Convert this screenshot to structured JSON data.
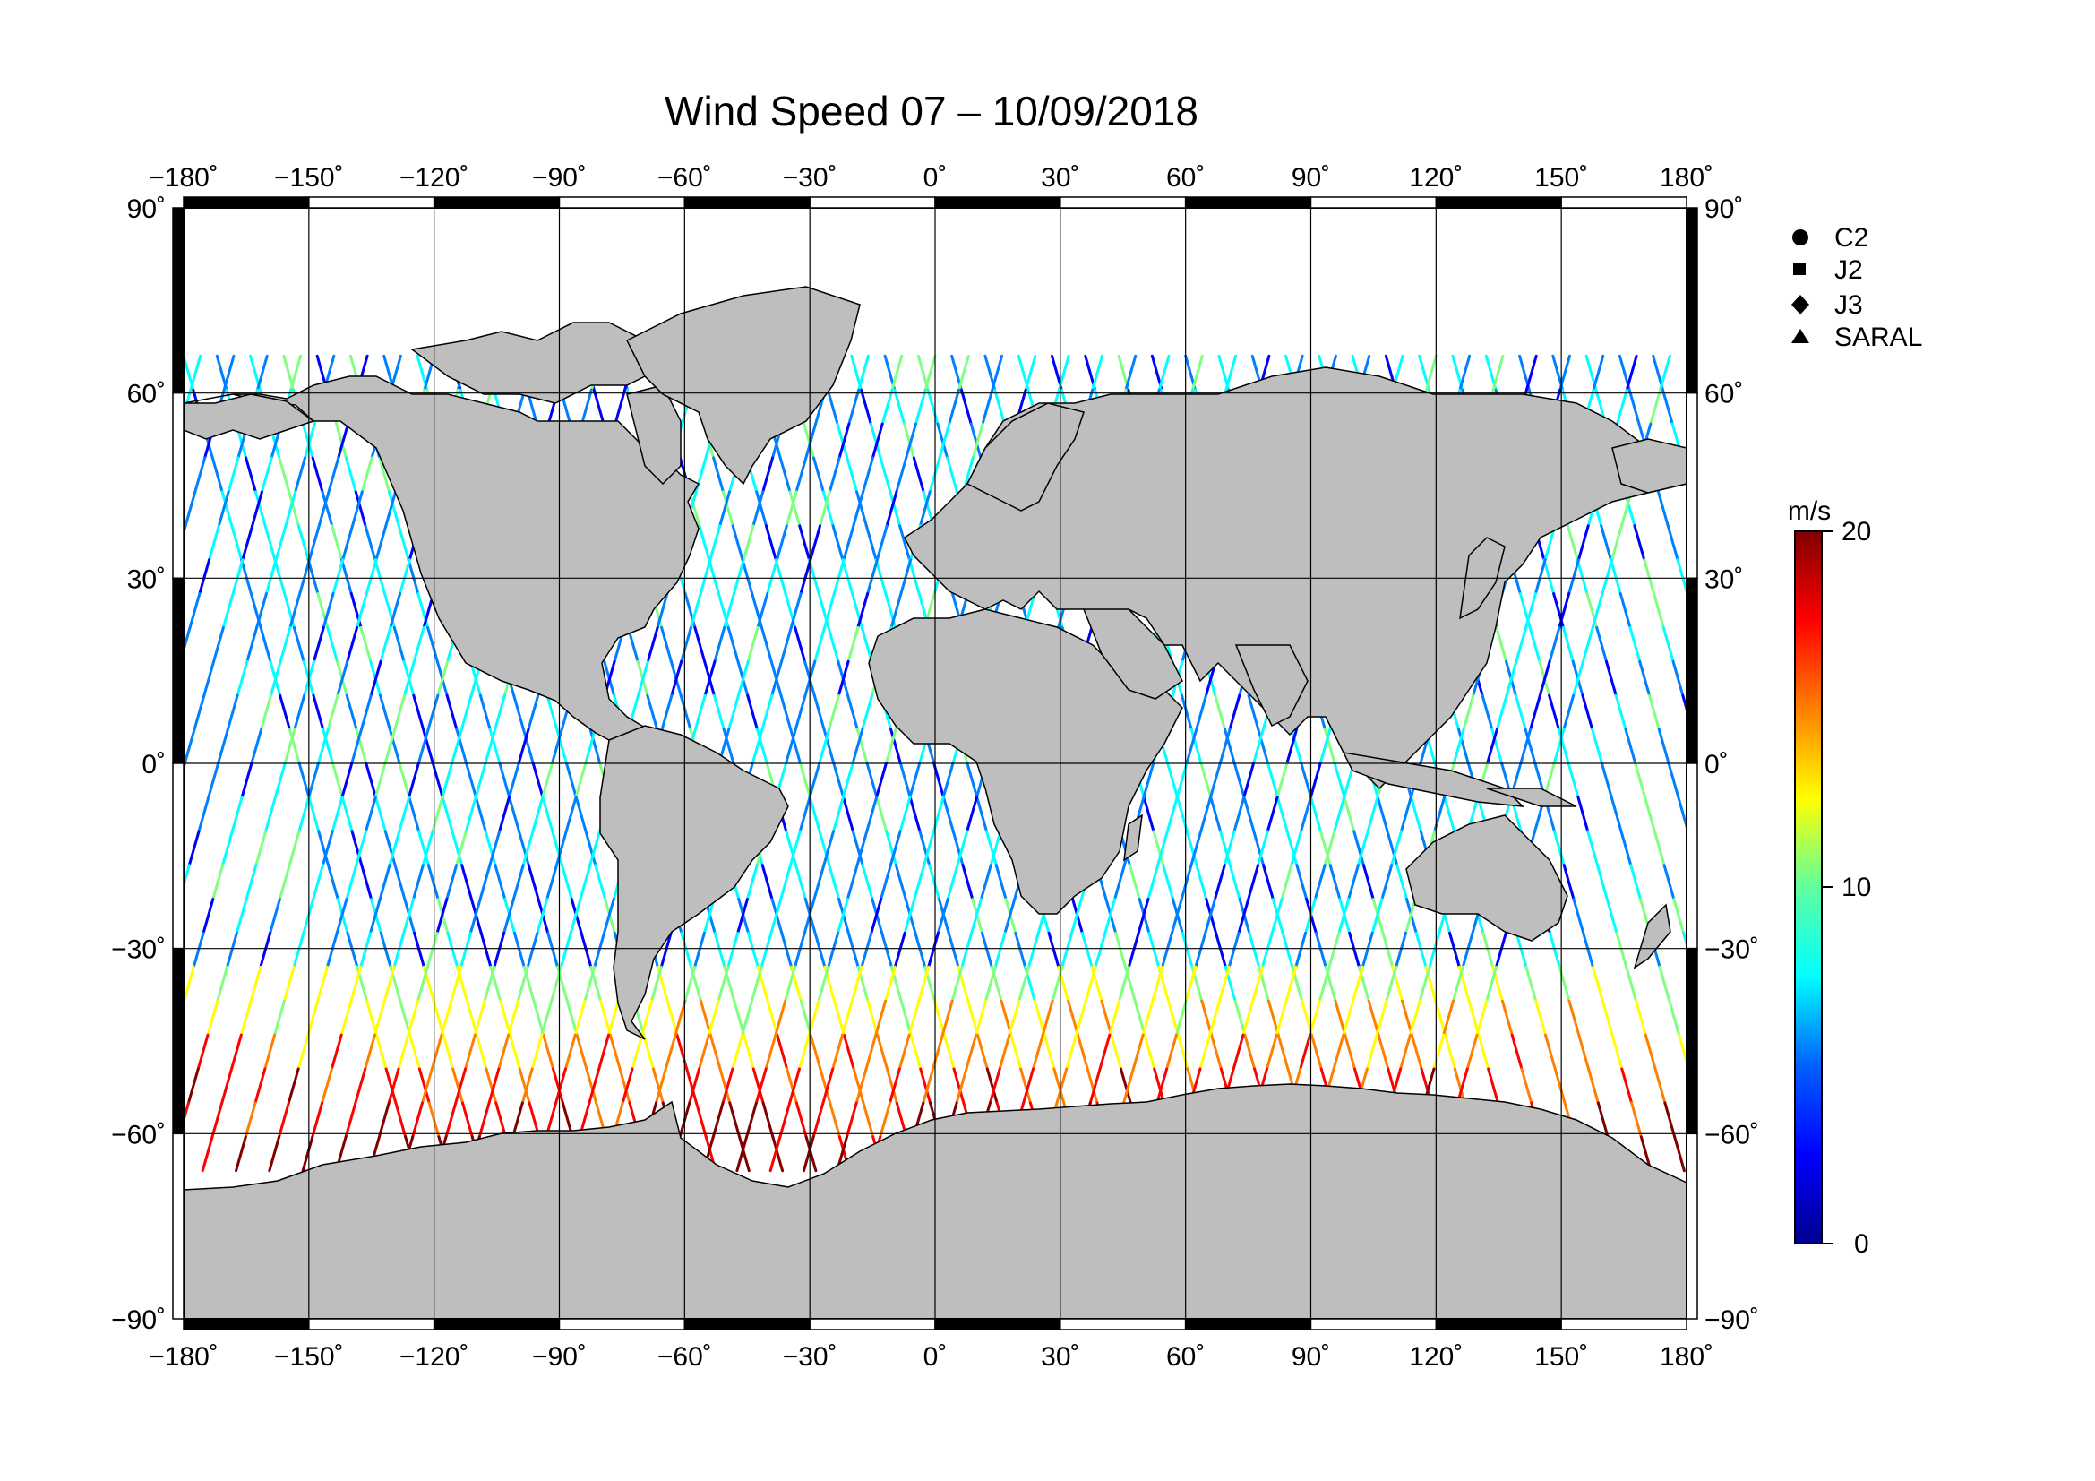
{
  "title": "Wind Speed 07 – 10/09/2018",
  "map": {
    "lon_range": [
      -180,
      180
    ],
    "lat_range": [
      -90,
      90
    ],
    "lon_ticks": [
      "−180˚",
      "−150˚",
      "−120˚",
      "−90˚",
      "−60˚",
      "−30˚",
      "0˚",
      "30˚",
      "60˚",
      "90˚",
      "120˚",
      "150˚",
      "180˚"
    ],
    "lat_ticks_left": [
      "90˚",
      "60˚",
      "30˚",
      "0˚",
      "−30˚",
      "−60˚",
      "−90˚"
    ],
    "lat_ticks_right": [
      "90˚",
      "60˚",
      "30˚",
      "0˚",
      "−30˚",
      "−60˚",
      "−90˚"
    ],
    "land_color": "#bebebe",
    "ocean_color": "#ffffff",
    "grid": true
  },
  "legend": {
    "placement": "right",
    "items": [
      {
        "symbol": "circle",
        "label": "C2"
      },
      {
        "symbol": "square",
        "label": "J2"
      },
      {
        "symbol": "diamond",
        "label": "J3"
      },
      {
        "symbol": "triangle",
        "label": "SARAL"
      }
    ]
  },
  "colorbar": {
    "unit": "m/s",
    "min_label": "0",
    "mid_label": "10",
    "max_label": "20",
    "colormap": "jet",
    "colors": [
      "#00008f",
      "#0000ff",
      "#0080ff",
      "#00ffff",
      "#80ff80",
      "#ffff00",
      "#ff8000",
      "#ff0000",
      "#800000"
    ]
  }
}
